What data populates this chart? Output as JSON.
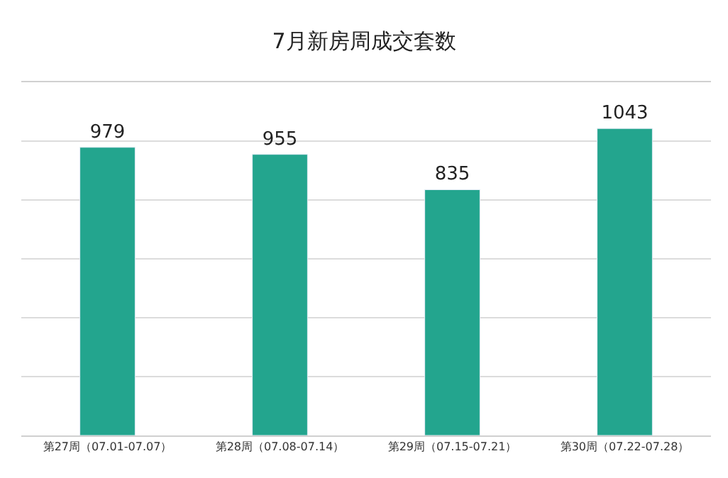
{
  "chart_data": {
    "type": "bar",
    "title": "7月新房周成交套数",
    "categories": [
      "第27周（07.01-07.07）",
      "第28周（07.08-07.14）",
      "第29周（07.15-07.21）",
      "第30周（07.22-07.28）"
    ],
    "values": [
      979,
      955,
      835,
      1043
    ],
    "color": "#23a58e",
    "data_labels": true,
    "ylim": [
      0,
      1200
    ],
    "yticks": [
      {
        "value": 0,
        "label": null
      },
      {
        "value": 200,
        "label": null
      },
      {
        "value": 400,
        "label": null
      },
      {
        "value": 600,
        "label": null
      },
      {
        "value": 800,
        "label": null
      },
      {
        "value": 1000,
        "label": null
      },
      {
        "value": 1200,
        "label": null
      }
    ],
    "grid": "y",
    "tick_labels": "x"
  }
}
